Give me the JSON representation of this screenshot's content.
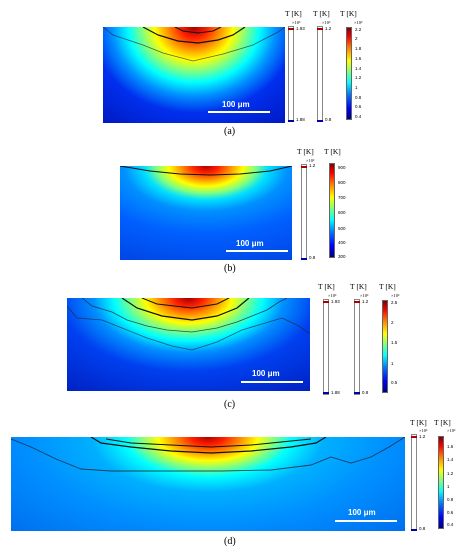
{
  "panels": [
    {
      "id": "a",
      "caption": "(a)",
      "scale_bar": "100 μm",
      "legends": [
        {
          "header": "T [K]",
          "exponent": "×10³",
          "max": "1.93",
          "min": "1.88"
        },
        {
          "header": "T [K]",
          "exponent": "×10³",
          "max": "1.2",
          "min": "0.8"
        }
      ],
      "colorbar": {
        "header": "T [K]",
        "exponent": "×10³",
        "ticks": [
          "2.2",
          "2",
          "1.8",
          "1.6",
          "1.4",
          "1.2",
          "1",
          "0.8",
          "0.6",
          "0.4"
        ]
      }
    },
    {
      "id": "b",
      "caption": "(b)",
      "scale_bar": "100 μm",
      "legends": [
        {
          "header": "T [K]",
          "exponent": "×10³",
          "max": "1.2",
          "min": "0.8"
        }
      ],
      "colorbar": {
        "header": "T [K]",
        "exponent": "",
        "ticks": [
          "900",
          "800",
          "700",
          "600",
          "500",
          "400",
          "300"
        ]
      }
    },
    {
      "id": "c",
      "caption": "(c)",
      "scale_bar": "100 μm",
      "legends": [
        {
          "header": "T [K]",
          "exponent": "×10³",
          "max": "1.93",
          "min": "1.88"
        },
        {
          "header": "T [K]",
          "exponent": "×10³",
          "max": "1.2",
          "min": "0.8"
        }
      ],
      "colorbar": {
        "header": "T [K]",
        "exponent": "×10³",
        "ticks": [
          "2.5",
          "2",
          "1.5",
          "1",
          "0.5"
        ]
      }
    },
    {
      "id": "d",
      "caption": "(d)",
      "scale_bar": "100 μm",
      "legends": [
        {
          "header": "T [K]",
          "exponent": "×10³",
          "max": "1.2",
          "min": "0.8"
        }
      ],
      "colorbar": {
        "header": "T [K]",
        "exponent": "×10³",
        "ticks": [
          "1.6",
          "1.4",
          "1.2",
          "1",
          "0.8",
          "0.6",
          "0.4"
        ]
      }
    }
  ]
}
